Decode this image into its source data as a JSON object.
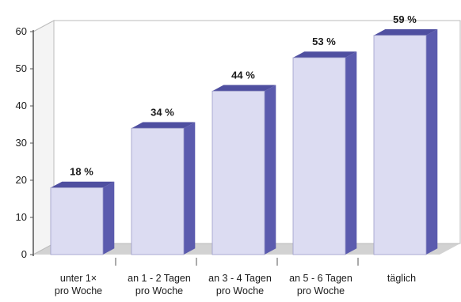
{
  "chart_data": {
    "type": "bar",
    "categories": [
      [
        "unter 1×",
        "pro Woche"
      ],
      [
        "an 1 - 2 Tagen",
        "pro Woche"
      ],
      [
        "an 3 - 4 Tagen",
        "pro Woche"
      ],
      [
        "an 5 - 6 Tagen",
        "pro Woche"
      ],
      [
        "täglich"
      ]
    ],
    "values": [
      18,
      34,
      44,
      53,
      59
    ],
    "data_labels": [
      "18 %",
      "34 %",
      "44 %",
      "53 %",
      "59 %"
    ],
    "y_ticks": [
      "0",
      "10",
      "20",
      "30",
      "40",
      "50",
      "60"
    ],
    "ylim": [
      0,
      60
    ],
    "title": "",
    "xlabel": "",
    "ylabel": "",
    "grid": false,
    "style": "3d-bar",
    "colors": {
      "bar_front": "#dcdcf2",
      "bar_top": "#4f4fa0",
      "bar_side": "#5b5bae",
      "wall": "#ffffff",
      "floor": "#d2d2d2",
      "frame": "#555555"
    }
  }
}
